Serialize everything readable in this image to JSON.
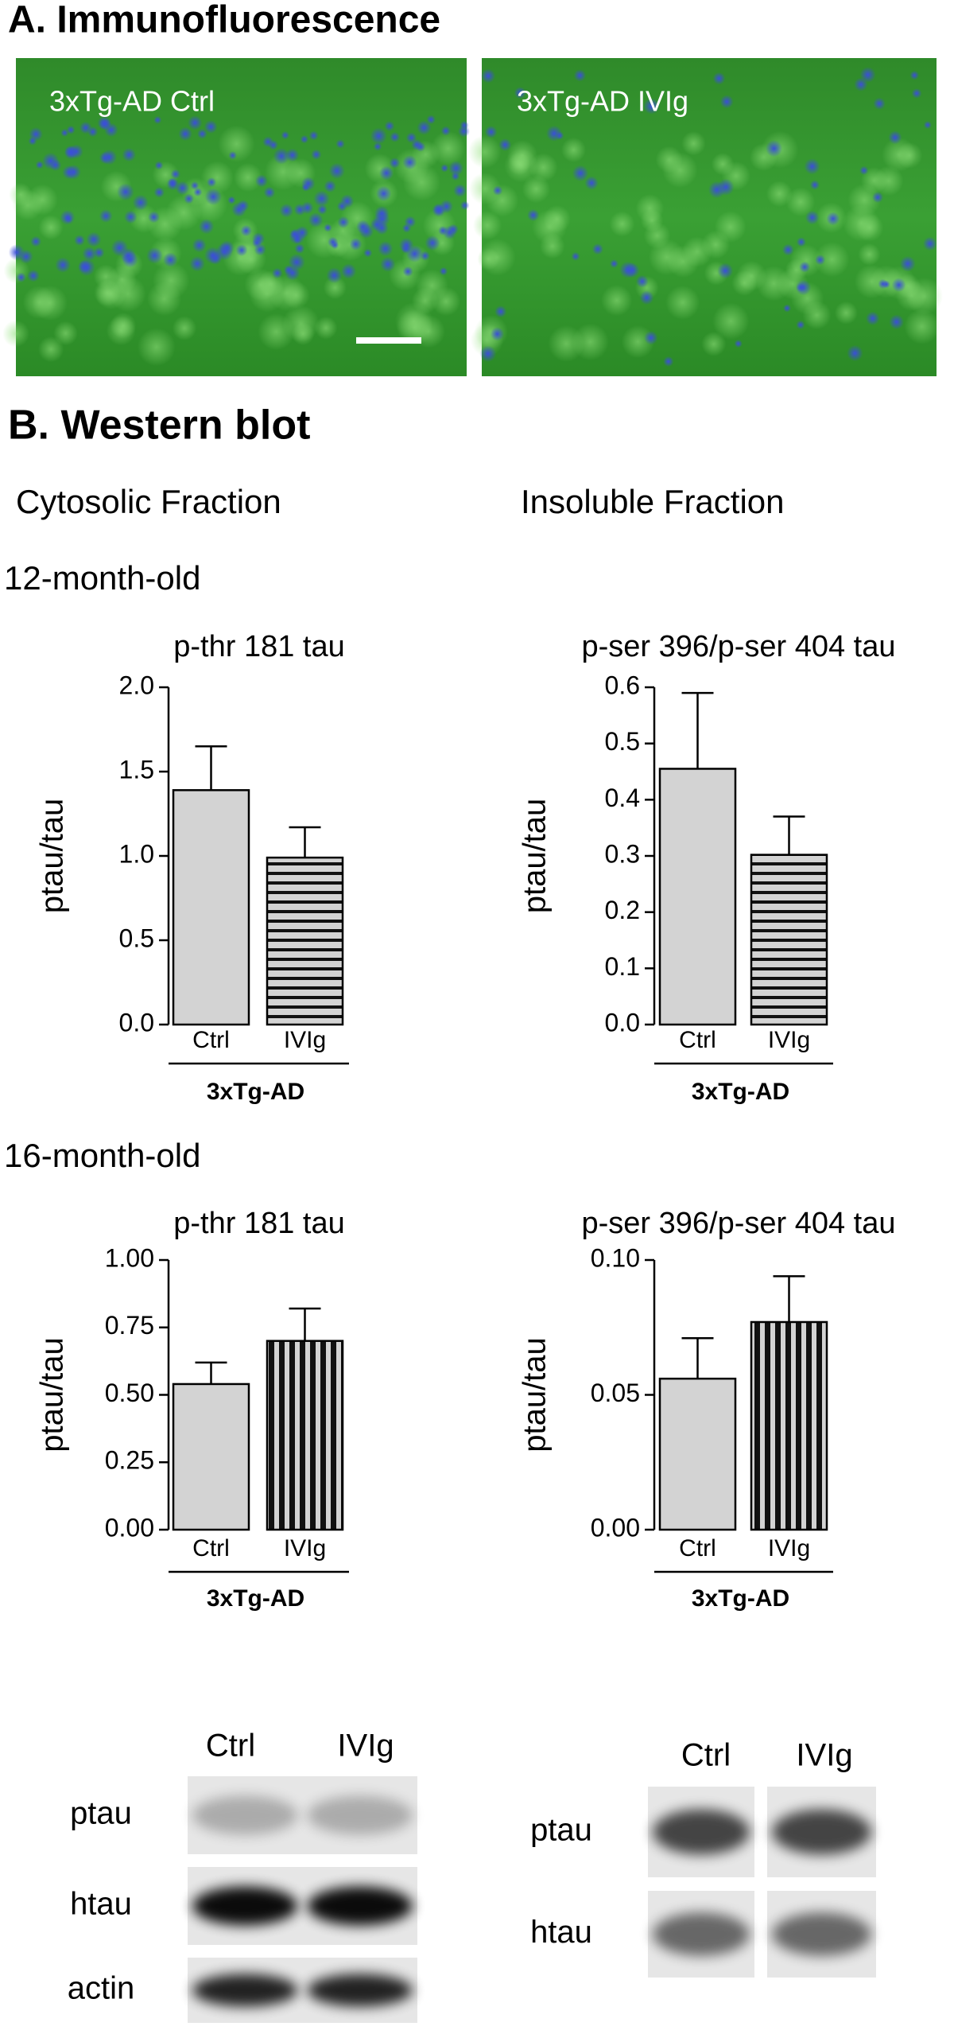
{
  "panel_a": {
    "title": "A. Immunofluorescence",
    "images": [
      "3xTg-AD Ctrl",
      "3xTg-AD IVIg"
    ]
  },
  "panel_b": {
    "title": "B. Western blot",
    "columns": [
      "Cytosolic Fraction",
      "Insoluble Fraction"
    ],
    "rows": [
      "12-month-old",
      "16-month-old"
    ]
  },
  "chart_data": [
    {
      "type": "bar",
      "title": "p-thr 181 tau",
      "ylabel": "ptau/tau",
      "categories": [
        "Ctrl",
        "IVIg"
      ],
      "group_label": "3xTg-AD",
      "values": [
        1.39,
        0.99
      ],
      "errors": [
        0.26,
        0.18
      ],
      "colors": [
        "#d3d3d3",
        "#d3d3d3"
      ],
      "fills": [
        "solid",
        "horizontal-stripes"
      ],
      "ylim": [
        0,
        2.0
      ],
      "yticks": [
        {
          "value": 0,
          "label": "0.0"
        },
        0.5,
        {
          "value": 1,
          "label": "1.0"
        },
        1.5,
        {
          "value": 2,
          "label": "2.0"
        }
      ]
    },
    {
      "type": "bar",
      "title": "p-ser 396/p-ser 404 tau",
      "ylabel": "ptau/tau",
      "categories": [
        "Ctrl",
        "IVIg"
      ],
      "group_label": "3xTg-AD",
      "values": [
        0.455,
        0.302
      ],
      "errors": [
        0.135,
        0.068
      ],
      "colors": [
        "#d3d3d3",
        "#d3d3d3"
      ],
      "fills": [
        "solid",
        "horizontal-stripes"
      ],
      "ylim": [
        0,
        0.6
      ],
      "yticks": [
        {
          "value": 0,
          "label": "0.0"
        },
        0.1,
        0.2,
        0.3,
        0.4,
        0.5,
        0.6
      ]
    },
    {
      "type": "bar",
      "title": "p-thr 181 tau",
      "ylabel": "ptau/tau",
      "categories": [
        "Ctrl",
        "IVIg"
      ],
      "group_label": "3xTg-AD",
      "values": [
        0.54,
        0.7
      ],
      "errors": [
        0.08,
        0.12
      ],
      "colors": [
        "#d3d3d3",
        "#d3d3d3"
      ],
      "fills": [
        "solid",
        "vertical-stripes"
      ],
      "ylim": [
        0,
        1.0
      ],
      "yticks": [
        {
          "value": 0,
          "label": "0.00"
        },
        0.25,
        {
          "value": 0.5,
          "label": "0.50"
        },
        0.75,
        {
          "value": 1,
          "label": "1.00"
        }
      ]
    },
    {
      "type": "bar",
      "title": "p-ser 396/p-ser 404 tau",
      "ylabel": "ptau/tau",
      "categories": [
        "Ctrl",
        "IVIg"
      ],
      "group_label": "3xTg-AD",
      "values": [
        0.056,
        0.077
      ],
      "errors": [
        0.015,
        0.017
      ],
      "colors": [
        "#d3d3d3",
        "#d3d3d3"
      ],
      "fills": [
        "solid",
        "vertical-stripes"
      ],
      "ylim": [
        0,
        0.1
      ],
      "yticks": [
        {
          "value": 0,
          "label": "0.00"
        },
        0.05,
        {
          "value": 0.1,
          "label": "0.10"
        }
      ]
    }
  ],
  "blots": [
    {
      "lanes": [
        "Ctrl",
        "IVIg"
      ],
      "rows": [
        "ptau",
        "htau",
        "actin"
      ]
    },
    {
      "lanes": [
        "Ctrl",
        "IVIg"
      ],
      "rows": [
        "ptau",
        "htau"
      ]
    }
  ]
}
